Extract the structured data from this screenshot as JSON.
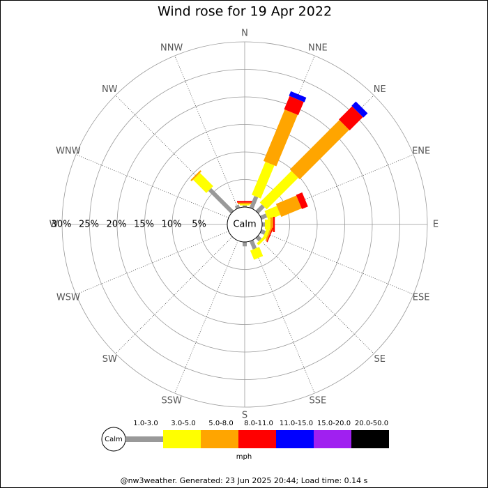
{
  "chart_data": {
    "type": "windrose",
    "title": "Wind rose for 19 Apr 2022",
    "directions": [
      "N",
      "NNE",
      "NE",
      "ENE",
      "E",
      "ESE",
      "SE",
      "SSE",
      "S",
      "SSW",
      "SW",
      "WSW",
      "W",
      "WNW",
      "NW",
      "NNW"
    ],
    "calm_label": "Calm",
    "unit": "mph",
    "rlim": [
      0,
      30
    ],
    "rticks": [
      {
        "value": 5,
        "label": "5%"
      },
      {
        "value": 10,
        "label": "10%"
      },
      {
        "value": 15,
        "label": "15%"
      },
      {
        "value": 20,
        "label": "20%"
      },
      {
        "value": 25,
        "label": "25%"
      },
      {
        "value": 30,
        "label": "30%"
      }
    ],
    "grid": true,
    "series": [
      {
        "name": "1.0-3.0",
        "color": "#999999",
        "values": [
          0.3,
          2.3,
          1.6,
          1.1,
          0.5,
          0.8,
          0.8,
          1.6,
          0.8,
          0,
          0,
          0,
          0,
          0,
          5.8,
          0.6
        ]
      },
      {
        "name": "3.0-5.0",
        "color": "#ffff00",
        "values": [
          0.2,
          6.5,
          8.1,
          2.4,
          1.0,
          0.6,
          0.5,
          1.8,
          0,
          0,
          0,
          0,
          0,
          0,
          3.4,
          0
        ]
      },
      {
        "name": "5.0-8.0",
        "color": "#ffa500",
        "values": [
          0.3,
          10.1,
          12.7,
          4.0,
          0.5,
          0.3,
          0,
          0,
          0,
          0,
          0,
          0,
          0,
          0,
          0.3,
          0
        ]
      },
      {
        "name": "8.0-11.0",
        "color": "#ff0000",
        "values": [
          0.3,
          2.6,
          3.4,
          1.2,
          0.3,
          0.2,
          0,
          0,
          0,
          0,
          0,
          0,
          0,
          0,
          0,
          0
        ]
      },
      {
        "name": "11.0-15.0",
        "color": "#0000ff",
        "values": [
          0,
          0.9,
          1.1,
          0,
          0,
          0,
          0,
          0,
          0,
          0,
          0,
          0,
          0,
          0,
          0,
          0
        ]
      },
      {
        "name": "15.0-20.0",
        "color": "#a020f0",
        "values": [
          0,
          0,
          0,
          0,
          0,
          0,
          0,
          0,
          0,
          0,
          0,
          0,
          0,
          0,
          0,
          0
        ]
      },
      {
        "name": "20.0-50.0",
        "color": "#000000",
        "values": [
          0,
          0,
          0,
          0,
          0,
          0,
          0,
          0,
          0,
          0,
          0,
          0,
          0,
          0,
          0,
          0
        ]
      }
    ],
    "footer": "@nw3weather. Generated: 23 Jun 2025 20:44; Load time: 0.14 s"
  }
}
